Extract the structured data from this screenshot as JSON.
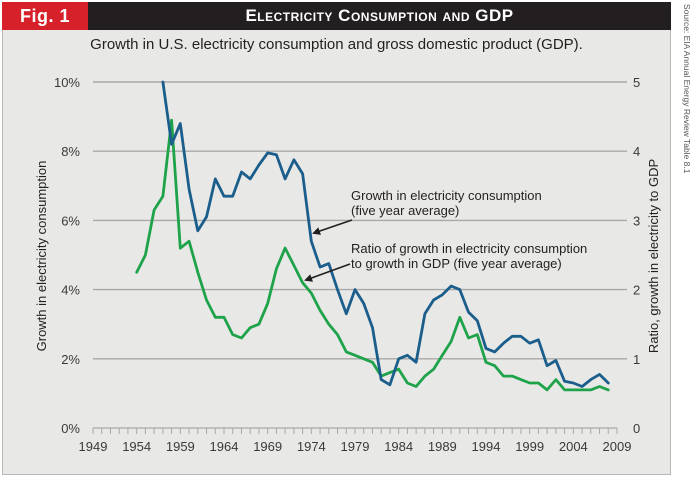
{
  "figure": {
    "tag": "Fig. 1",
    "title": "Electricity Consumption and GDP",
    "subtitle": "Growth in U.S. electricity consumption and gross domestic product (GDP).",
    "source": "Source: EIA Annual Energy Review Table 8.1"
  },
  "colors": {
    "tag_red": "#d7212a",
    "header_black": "#231f20",
    "panel_bg": "#e8e8e6",
    "consumption_line": "#1b5e8c",
    "ratio_line": "#1fa34a",
    "gridline": "#a8a8a6"
  },
  "chart_data": {
    "type": "line",
    "title": "Electricity Consumption and GDP",
    "subtitle": "Growth in U.S. electricity consumption and gross domestic product (GDP).",
    "xlabel": "",
    "ylabel": "Growth in electricity consumption",
    "y2label": "Ratio, growth in electricity to GDP",
    "xlim": [
      1949,
      2009
    ],
    "ylim": [
      0,
      10
    ],
    "y2lim": [
      0,
      5
    ],
    "grid": true,
    "x_ticks": [
      "1949",
      "1954",
      "1959",
      "1964",
      "1969",
      "1974",
      "1979",
      "1984",
      "1989",
      "1994",
      "1999",
      "2004",
      "2009"
    ],
    "y_ticks": [
      "0%",
      "2%",
      "4%",
      "6%",
      "8%",
      "10%"
    ],
    "y2_ticks": [
      "0",
      "1",
      "2",
      "3",
      "4",
      "5"
    ],
    "series": [
      {
        "name": "Growth in electricity consumption (five year average)",
        "axis": "left",
        "unit": "%",
        "x": [
          1957,
          1958,
          1959,
          1960,
          1961,
          1962,
          1963,
          1964,
          1965,
          1966,
          1967,
          1968,
          1969,
          1970,
          1971,
          1972,
          1973,
          1974,
          1975,
          1976,
          1977,
          1978,
          1979,
          1980,
          1981,
          1982,
          1983,
          1984,
          1985,
          1986,
          1987,
          1988,
          1989,
          1990,
          1991,
          1992,
          1993,
          1994,
          1995,
          1996,
          1997,
          1998,
          1999,
          2000,
          2001,
          2002,
          2003,
          2004,
          2005,
          2006,
          2007,
          2008
        ],
        "values": [
          10.0,
          8.2,
          8.8,
          6.9,
          5.7,
          6.1,
          7.2,
          6.7,
          6.7,
          7.4,
          7.2,
          7.6,
          7.95,
          7.9,
          7.2,
          7.75,
          7.35,
          5.4,
          4.65,
          4.75,
          4.0,
          3.3,
          4.0,
          3.6,
          2.9,
          1.4,
          1.25,
          2.0,
          2.1,
          1.9,
          3.3,
          3.7,
          3.85,
          4.1,
          4.0,
          3.35,
          3.1,
          2.3,
          2.2,
          2.45,
          2.65,
          2.65,
          2.45,
          2.55,
          1.8,
          1.95,
          1.35,
          1.3,
          1.2,
          1.4,
          1.55,
          1.3
        ]
      },
      {
        "name": "Ratio of growth in electricity consumption to growth in GDP (five year average)",
        "axis": "right",
        "unit": "ratio",
        "x": [
          1954,
          1955,
          1956,
          1957,
          1958,
          1959,
          1960,
          1961,
          1962,
          1963,
          1964,
          1965,
          1966,
          1967,
          1968,
          1969,
          1970,
          1971,
          1972,
          1973,
          1974,
          1975,
          1976,
          1977,
          1978,
          1979,
          1980,
          1981,
          1982,
          1983,
          1984,
          1985,
          1986,
          1987,
          1988,
          1989,
          1990,
          1991,
          1992,
          1993,
          1994,
          1995,
          1996,
          1997,
          1998,
          1999,
          2000,
          2001,
          2002,
          2003,
          2004,
          2005,
          2006,
          2007,
          2008
        ],
        "values": [
          2.25,
          2.5,
          3.15,
          3.35,
          4.45,
          2.6,
          2.7,
          2.25,
          1.85,
          1.6,
          1.6,
          1.35,
          1.3,
          1.45,
          1.5,
          1.8,
          2.3,
          2.6,
          2.35,
          2.1,
          1.95,
          1.7,
          1.5,
          1.35,
          1.1,
          1.05,
          1.0,
          0.95,
          0.75,
          0.8,
          0.85,
          0.65,
          0.6,
          0.75,
          0.85,
          1.05,
          1.25,
          1.6,
          1.3,
          1.35,
          0.95,
          0.9,
          0.75,
          0.75,
          0.7,
          0.65,
          0.65,
          0.55,
          0.7,
          0.55,
          0.55,
          0.55,
          0.55,
          0.6,
          0.55
        ]
      }
    ],
    "annotations": [
      {
        "lines": [
          "Growth in electricity consumption",
          "(five year average)"
        ],
        "points_to_series": 0,
        "points_to_year": 1974
      },
      {
        "lines": [
          "Ratio of growth in electricity consumption",
          "to growth in GDP (five year average)"
        ],
        "points_to_series": 1,
        "points_to_year": 1973
      }
    ]
  }
}
